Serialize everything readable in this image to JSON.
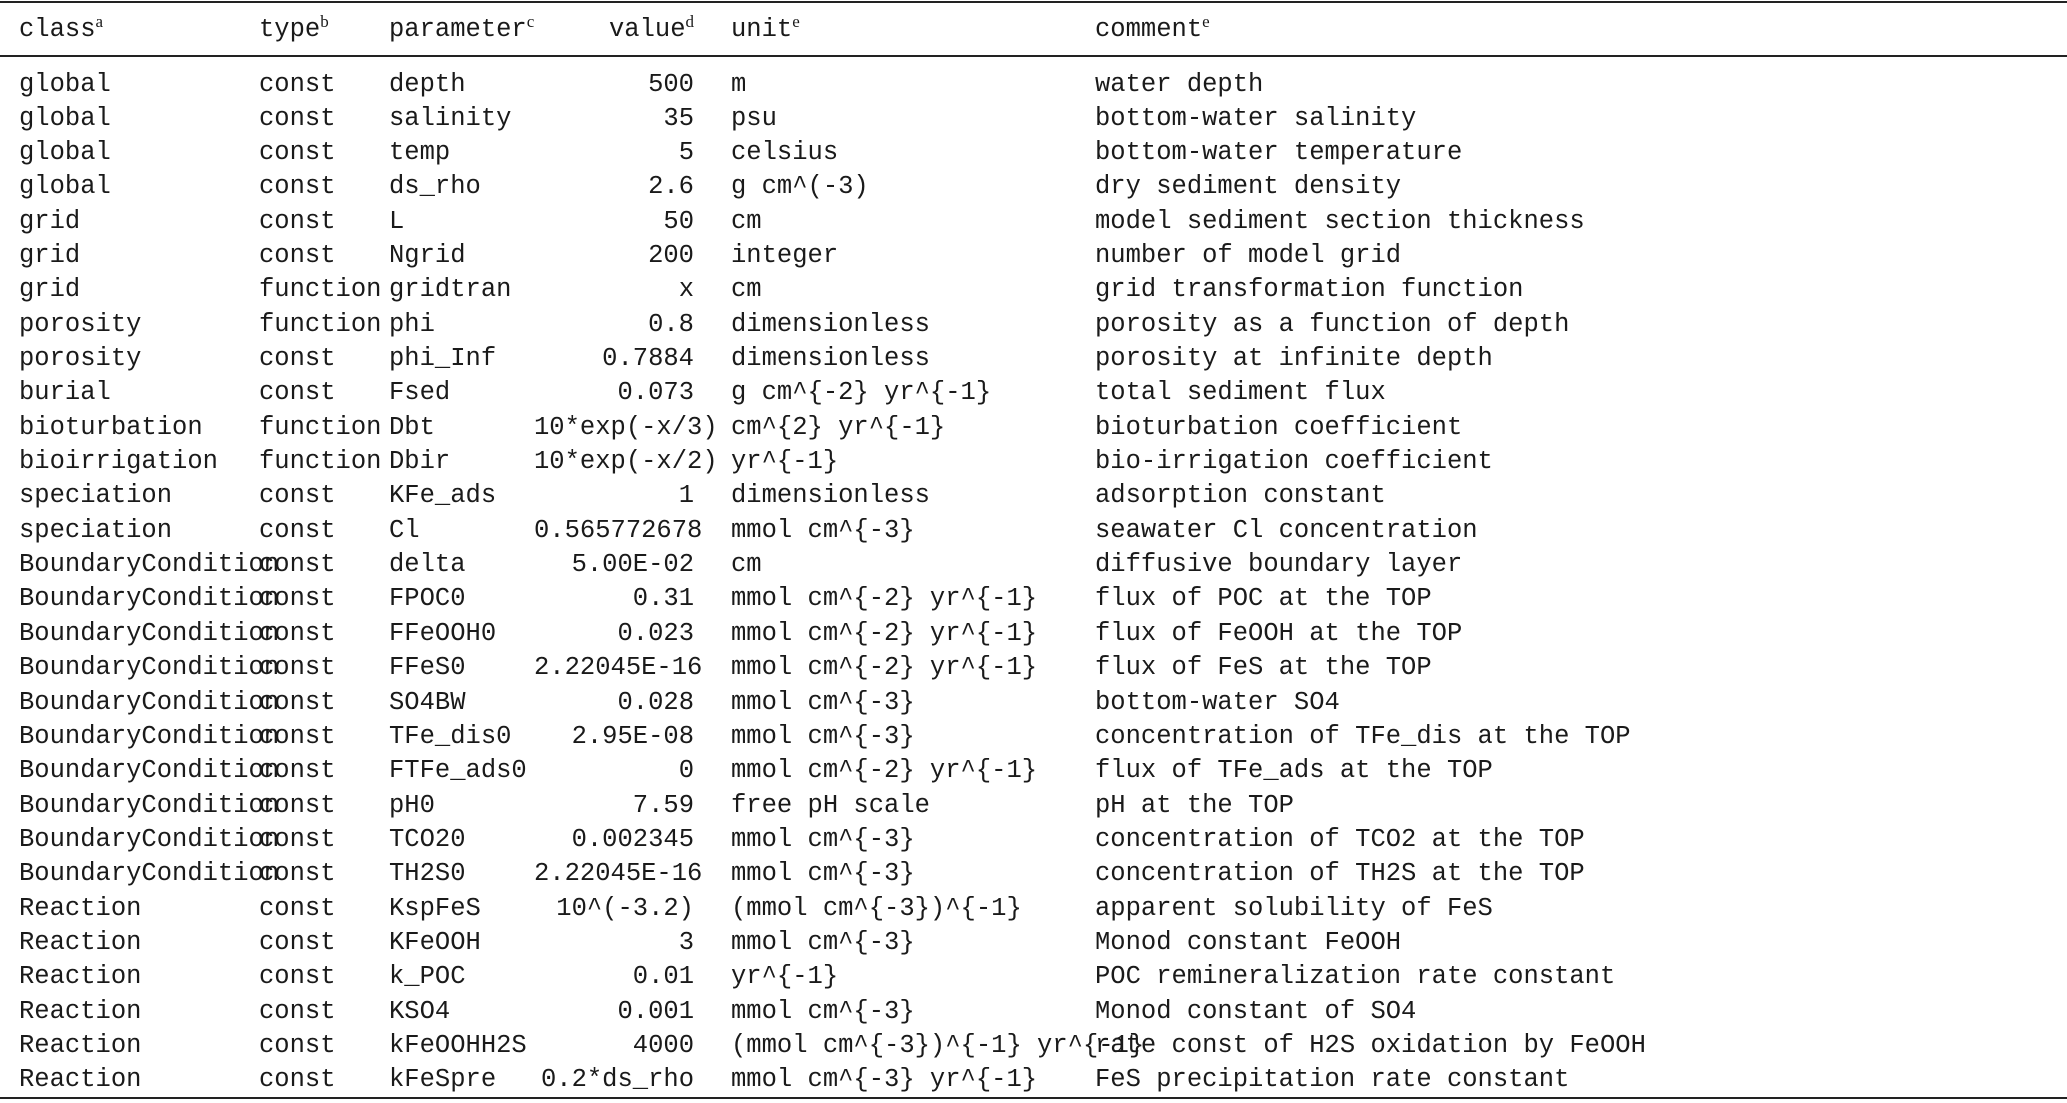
{
  "table": {
    "headers": [
      {
        "label": "class",
        "note": "a"
      },
      {
        "label": "type",
        "note": "b"
      },
      {
        "label": "parameter",
        "note": "c"
      },
      {
        "label": "value",
        "note": "d"
      },
      {
        "label": "unit",
        "note": "e"
      },
      {
        "label": "comment",
        "note": "e"
      }
    ],
    "rows": [
      [
        "global",
        "const",
        "depth",
        "500",
        "m",
        "water depth"
      ],
      [
        "global",
        "const",
        "salinity",
        "35",
        "psu",
        "bottom-water salinity"
      ],
      [
        "global",
        "const",
        "temp",
        "5",
        "celsius",
        "bottom-water temperature"
      ],
      [
        "global",
        "const",
        "ds_rho",
        "2.6",
        "g cm^(-3)",
        "dry sediment density"
      ],
      [
        "grid",
        "const",
        "L",
        "50",
        "cm",
        "model sediment section thickness"
      ],
      [
        "grid",
        "const",
        "Ngrid",
        "200",
        "integer",
        "number of model grid"
      ],
      [
        "grid",
        "function",
        "gridtran",
        "x",
        "cm",
        "grid transformation function"
      ],
      [
        "porosity",
        "function",
        "phi",
        "0.8",
        "dimensionless",
        "porosity as a function of depth"
      ],
      [
        "porosity",
        "const",
        "phi_Inf",
        "0.7884",
        "dimensionless",
        "porosity at infinite depth"
      ],
      [
        "burial",
        "const",
        "Fsed",
        "0.073",
        "g cm^{-2} yr^{-1}",
        "total sediment flux"
      ],
      [
        "bioturbation",
        "function",
        "Dbt",
        "10*exp(-x/3)",
        "cm^{2} yr^{-1}",
        "bioturbation coefficient"
      ],
      [
        "bioirrigation",
        "function",
        "Dbir",
        "10*exp(-x/2)",
        "yr^{-1}",
        "bio-irrigation coefficient"
      ],
      [
        "speciation",
        "const",
        "KFe_ads",
        "1",
        "dimensionless",
        "adsorption constant"
      ],
      [
        "speciation",
        "const",
        "Cl",
        "0.565772678",
        "mmol cm^{-3}",
        "seawater Cl concentration"
      ],
      [
        "BoundaryCondition",
        "const",
        "delta",
        "5.00E-02",
        "cm",
        "diffusive boundary layer"
      ],
      [
        "BoundaryCondition",
        "const",
        "FPOC0",
        "0.31",
        "mmol cm^{-2} yr^{-1}",
        "flux of POC at the TOP"
      ],
      [
        "BoundaryCondition",
        "const",
        "FFeOOH0",
        "0.023",
        "mmol cm^{-2} yr^{-1}",
        "flux of FeOOH at the TOP"
      ],
      [
        "BoundaryCondition",
        "const",
        "FFeS0",
        "2.22045E-16",
        "mmol cm^{-2} yr^{-1}",
        "flux of FeS at the TOP"
      ],
      [
        "BoundaryCondition",
        "const",
        "SO4BW",
        "0.028",
        "mmol cm^{-3}",
        "bottom-water SO4"
      ],
      [
        "BoundaryCondition",
        "const",
        "TFe_dis0",
        "2.95E-08",
        "mmol cm^{-3}",
        "concentration of TFe_dis at the TOP"
      ],
      [
        "BoundaryCondition",
        "const",
        "FTFe_ads0",
        "0",
        "mmol cm^{-2} yr^{-1}",
        "flux of TFe_ads at the TOP"
      ],
      [
        "BoundaryCondition",
        "const",
        "pH0",
        "7.59",
        "free pH scale",
        "pH at the TOP"
      ],
      [
        "BoundaryCondition",
        "const",
        "TCO20",
        "0.002345",
        "mmol cm^{-3}",
        "concentration of TCO2 at the TOP"
      ],
      [
        "BoundaryCondition",
        "const",
        "TH2S0",
        "2.22045E-16",
        "mmol cm^{-3}",
        "concentration of TH2S at the TOP"
      ],
      [
        "Reaction",
        "const",
        "KspFeS",
        "10^(-3.2)",
        "(mmol cm^{-3})^{-1}",
        "apparent solubility of FeS"
      ],
      [
        "Reaction",
        "const",
        "KFeOOH",
        "3",
        "mmol cm^{-3}",
        "Monod constant FeOOH"
      ],
      [
        "Reaction",
        "const",
        "k_POC",
        "0.01",
        "yr^{-1}",
        "POC remineralization rate constant"
      ],
      [
        "Reaction",
        "const",
        "KSO4",
        "0.001",
        "mmol cm^{-3}",
        "Monod constant of SO4"
      ],
      [
        "Reaction",
        "const",
        "kFeOOHH2S",
        "4000",
        "(mmol cm^{-3})^{-1} yr^{-1}",
        "rate const of H2S oxidation by FeOOH"
      ],
      [
        "Reaction",
        "const",
        "kFeSpre",
        "0.2*ds_rho",
        "mmol cm^{-3} yr^{-1}",
        "FeS precipitation rate constant"
      ]
    ]
  }
}
